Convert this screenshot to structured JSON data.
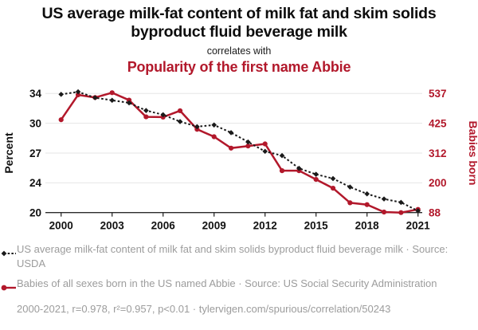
{
  "header": {
    "title": "US average milk-fat content of milk fat and skim solids byproduct fluid beverage milk",
    "connector": "correlates with",
    "subtitle": "Popularity of the first name Abbie"
  },
  "colors": {
    "accent_red": "#b2182b",
    "series_black": "#1a1a1a",
    "grid": "#e6e6e6",
    "axis": "#2b2b2b",
    "muted_text": "#9c9c9c"
  },
  "chart_data": {
    "type": "line",
    "x": [
      2000,
      2001,
      2002,
      2003,
      2004,
      2005,
      2006,
      2007,
      2008,
      2009,
      2010,
      2011,
      2012,
      2013,
      2014,
      2015,
      2016,
      2017,
      2018,
      2019,
      2020,
      2021
    ],
    "x_tick_labels": [
      "2000",
      "2003",
      "2006",
      "2009",
      "2012",
      "2015",
      "2018",
      "2021"
    ],
    "grid": "horizontal",
    "legend_position": "bottom",
    "left_axis": {
      "label": "Percent",
      "tick_labels": [
        "34",
        "30",
        "27",
        "24",
        "20"
      ],
      "range": [
        20,
        34
      ]
    },
    "right_axis": {
      "label": "Babies born",
      "tick_labels": [
        "537",
        "425",
        "312",
        "200",
        "88"
      ],
      "range": [
        88,
        537
      ]
    },
    "series": [
      {
        "name": "US average milk-fat content of milk fat and skim solids byproduct fluid beverage milk",
        "axis": "left",
        "style": "dashed-diamond",
        "color": "#1a1a1a",
        "values": [
          33.9,
          34.2,
          33.5,
          33.2,
          32.9,
          32.0,
          31.5,
          30.7,
          30.1,
          30.3,
          29.4,
          28.3,
          27.2,
          26.7,
          25.2,
          24.5,
          24.0,
          23.0,
          22.2,
          21.6,
          21.2,
          20.2
        ]
      },
      {
        "name": "Babies of all sexes born in the US named Abbie",
        "axis": "right",
        "style": "solid-circle",
        "color": "#b2182b",
        "values": [
          438,
          532,
          522,
          540,
          512,
          449,
          448,
          472,
          402,
          374,
          331,
          339,
          347,
          246,
          246,
          213,
          180,
          125,
          118,
          90,
          88,
          100
        ]
      }
    ]
  },
  "legend": {
    "entries": [
      {
        "label": "US average milk-fat content of milk fat and skim solids byproduct fluid beverage milk · Source: USDA"
      },
      {
        "label": "Babies of all sexes born in the US named Abbie · Source: US Social Security Administration"
      }
    ]
  },
  "footer": {
    "text": "2000-2021, r=0.978, r²=0.957, p<0.01 · tylervigen.com/spurious/correlation/50243"
  }
}
